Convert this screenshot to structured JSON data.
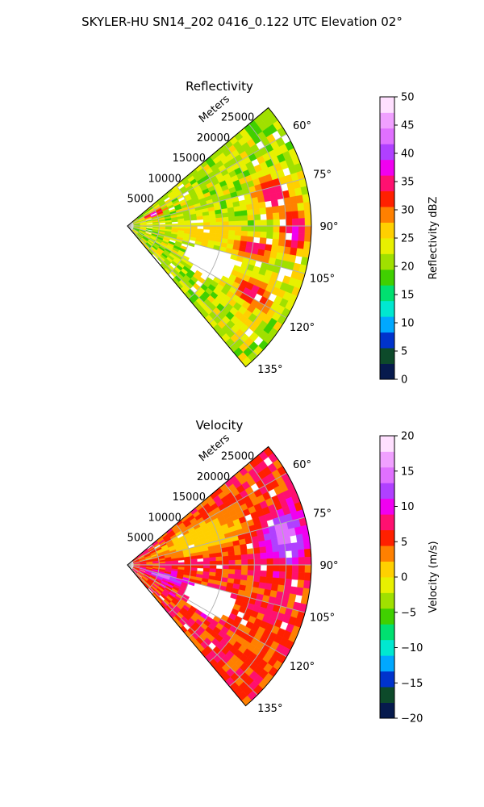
{
  "figure": {
    "suptitle": "SKYLER-HU  SN14_202  0416_0.122 UTC Elevation 02°"
  },
  "chart_data": [
    {
      "type": "heatmap",
      "title": "Reflectivity",
      "range_axis_label": "Meters",
      "range_ticks": [
        "5000",
        "10000",
        "15000",
        "20000",
        "25000"
      ],
      "range_tick_values": [
        5000,
        10000,
        15000,
        20000,
        25000
      ],
      "range_max": 29000,
      "azimuth_ticks": [
        "60°",
        "75°",
        "90°",
        "105°",
        "120°",
        "135°"
      ],
      "azimuth_tick_values": [
        60,
        75,
        90,
        105,
        120,
        135
      ],
      "azimuth_range": [
        50,
        140
      ],
      "grid": true,
      "colorbar": {
        "label": "Reflectivity dBZ",
        "min": 0,
        "max": 50,
        "ticks": [
          "0",
          "5",
          "10",
          "15",
          "20",
          "25",
          "30",
          "35",
          "40",
          "45",
          "50"
        ],
        "tick_values": [
          0,
          5,
          10,
          15,
          20,
          25,
          30,
          35,
          40,
          45,
          50
        ],
        "colors": [
          "#061a4d",
          "#0d4a2a",
          "#0033cc",
          "#00a8ff",
          "#00e8d0",
          "#00e070",
          "#40d000",
          "#a0e000",
          "#e8f000",
          "#ffd000",
          "#ff8000",
          "#ff2000",
          "#ff1070",
          "#f000f0",
          "#b040ff",
          "#e070ff",
          "#f0a0ff",
          "#ffe0ff"
        ]
      },
      "field": {
        "base_value": 22,
        "noise": 4,
        "gap_probability": 0.05,
        "features": [
          {
            "azimuth": 78,
            "range": 23500,
            "value": 36,
            "az_width": 7,
            "range_width": 3000
          },
          {
            "azimuth": 92,
            "range": 26500,
            "value": 38,
            "az_width": 8,
            "range_width": 2200
          },
          {
            "azimuth": 100,
            "range": 20000,
            "value": 37,
            "az_width": 5,
            "range_width": 3000
          },
          {
            "azimuth": 118,
            "range": 22500,
            "value": 35,
            "az_width": 6,
            "range_width": 3500
          },
          {
            "azimuth": 66,
            "range": 4500,
            "value": 42,
            "az_width": 5,
            "range_width": 1500
          },
          {
            "azimuth": 95,
            "range": 12000,
            "value": 27,
            "az_width": 10,
            "range_width": 5000
          }
        ],
        "empty_regions": [
          {
            "azimuth": 113,
            "range": 14000,
            "az_width": 9,
            "range_width": 4500
          }
        ]
      }
    },
    {
      "type": "heatmap",
      "title": "Velocity",
      "range_axis_label": "Meters",
      "range_ticks": [
        "5000",
        "10000",
        "15000",
        "20000",
        "25000"
      ],
      "range_tick_values": [
        5000,
        10000,
        15000,
        20000,
        25000
      ],
      "range_max": 29000,
      "azimuth_ticks": [
        "60°",
        "75°",
        "90°",
        "105°",
        "120°",
        "135°"
      ],
      "azimuth_tick_values": [
        60,
        75,
        90,
        105,
        120,
        135
      ],
      "azimuth_range": [
        50,
        140
      ],
      "grid": true,
      "colorbar": {
        "label": "Velocity (m/s)",
        "min": -20,
        "max": 20,
        "ticks": [
          "−20",
          "−15",
          "−10",
          "−5",
          "0",
          "5",
          "10",
          "15",
          "20"
        ],
        "tick_values": [
          -20,
          -15,
          -10,
          -5,
          0,
          5,
          10,
          15,
          20
        ],
        "colors": [
          "#061a4d",
          "#0d4a2a",
          "#0033cc",
          "#00a8ff",
          "#00e8d0",
          "#00e070",
          "#40d000",
          "#a0e000",
          "#e8f000",
          "#ffd000",
          "#ff8000",
          "#ff2000",
          "#ff1070",
          "#f000f0",
          "#b040ff",
          "#e070ff",
          "#f0a0ff",
          "#ffe0ff"
        ]
      },
      "field": {
        "base_value": 6,
        "noise": 3,
        "gap_probability": 0.04,
        "features": [
          {
            "azimuth": 70,
            "range": 12000,
            "value": 0,
            "az_width": 12,
            "range_width": 9000
          },
          {
            "azimuth": 80,
            "range": 25000,
            "value": 15,
            "az_width": 9,
            "range_width": 3500
          },
          {
            "azimuth": 108,
            "range": 6000,
            "value": 15,
            "az_width": 5,
            "range_width": 3000
          },
          {
            "azimuth": 122,
            "range": 24000,
            "value": 4,
            "az_width": 8,
            "range_width": 4000
          }
        ],
        "empty_regions": [
          {
            "azimuth": 113,
            "range": 14000,
            "az_width": 9,
            "range_width": 4500
          }
        ]
      }
    }
  ]
}
